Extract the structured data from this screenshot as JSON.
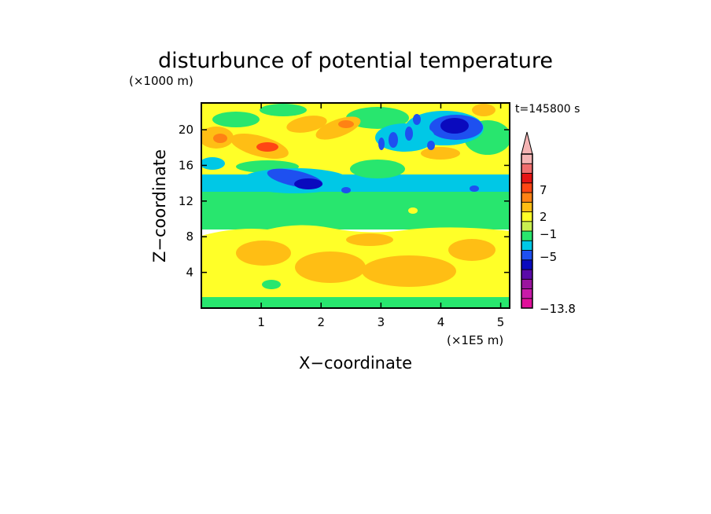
{
  "chart_data": {
    "type": "heatmap",
    "title": "disturbunce of potential temperature",
    "y_unit_label": "(×1000 m)",
    "x_unit_label": "(×1E5 m)",
    "xlabel": "X−coordinate",
    "ylabel": "Z−coordinate",
    "time_label": "t=145800 s",
    "xlim": [
      0,
      5.15
    ],
    "ylim": [
      0,
      23
    ],
    "x_ticks": [
      1,
      2,
      3,
      4,
      5
    ],
    "y_ticks": [
      4,
      8,
      12,
      16,
      20
    ],
    "x_tick_labels": [
      "1",
      "2",
      "3",
      "4",
      "5"
    ],
    "y_tick_labels": [
      "4",
      "8",
      "12",
      "16",
      "20"
    ],
    "colorbar": {
      "levels_colors": [
        "#e0109a",
        "#c81aa8",
        "#9a149e",
        "#5a0aa8",
        "#0a0abe",
        "#1e50f0",
        "#00c8e6",
        "#28e66e",
        "#c8f050",
        "#ffff28",
        "#ffbe14",
        "#ff8214",
        "#ff4614",
        "#e61414",
        "#f06e6e",
        "#f5b4b4"
      ],
      "tick_labels": [
        "7",
        "2",
        "−1",
        "−5",
        "−13.8"
      ],
      "extend_max": true
    }
  }
}
